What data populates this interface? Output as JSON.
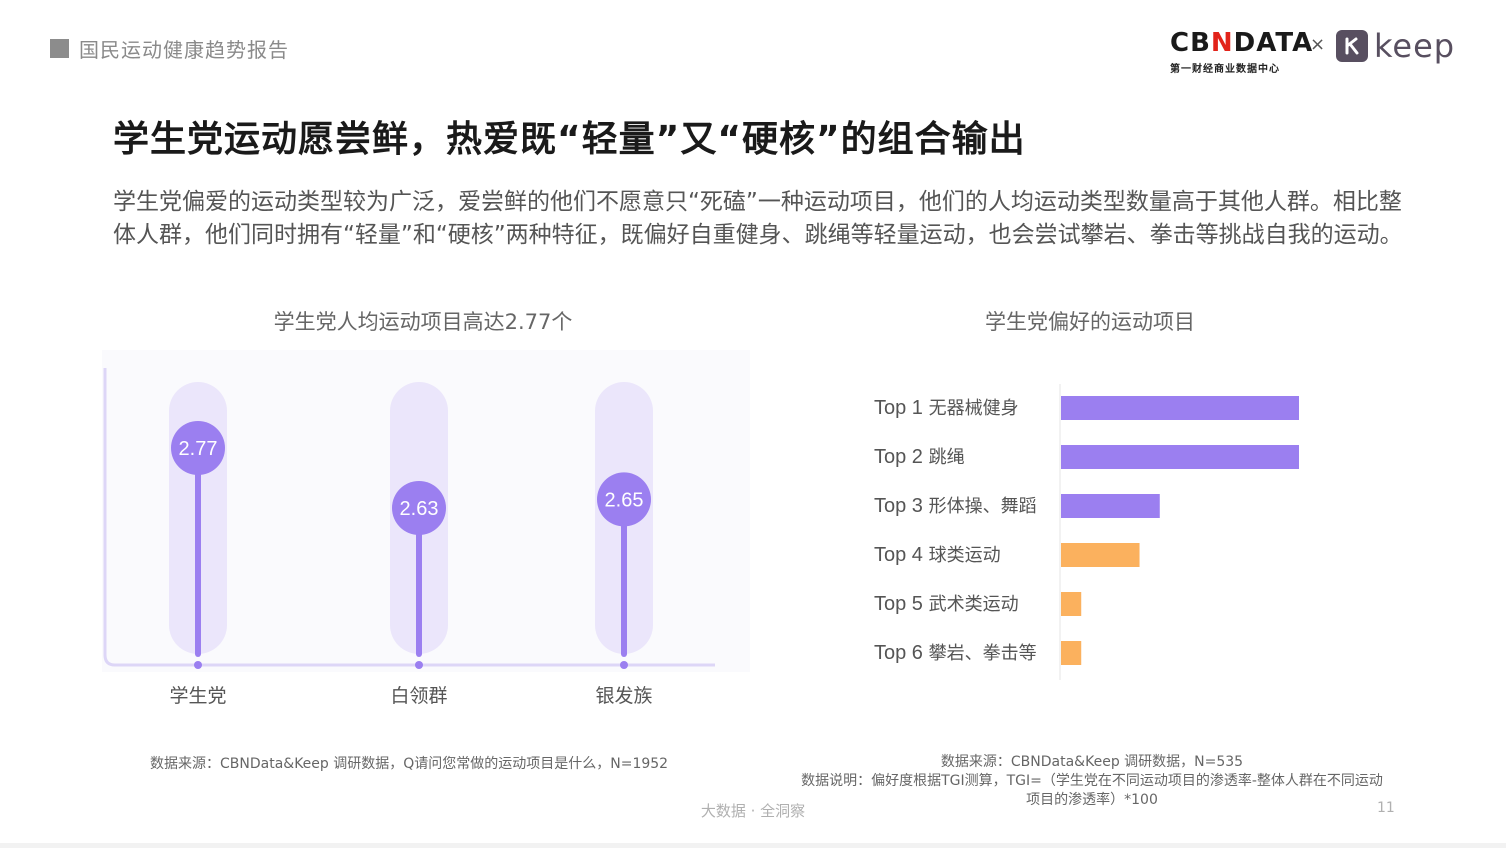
{
  "header": {
    "report_name": "国民运动健康趋势报告",
    "logo_cbn_main": "CBNDATA",
    "logo_cbn_sub": "第一财经商业数据中心",
    "logo_x": "×",
    "logo_keep": "keep"
  },
  "main": {
    "title": "学生党运动愿尝鲜，热爱既“轻量”又“硬核”的组合输出",
    "description": "学生党偏爱的运动类型较为广泛，爱尝鲜的他们不愿意只“死磕”一种运动项目，他们的人均运动类型数量高于其他人群。相比整体人群，他们同时拥有“轻量”和“硬核”两种特征，既偏好自重健身、跳绳等轻量运动，也会尝试攀岩、拳击等挑战自我的运动。"
  },
  "chart_data": [
    {
      "type": "lollipop",
      "title": "学生党人均运动项目高达2.77个",
      "categories": [
        "学生党",
        "白领群",
        "银发族"
      ],
      "values": [
        2.77,
        2.63,
        2.65
      ],
      "value_labels": [
        "2.77",
        "2.63",
        "2.65"
      ],
      "color": "#9b7ff0",
      "track_color": "#ebe6fb",
      "source": "数据来源：CBNData&Keep 调研数据，Q请问您常做的运动项目是什么，N=1952"
    },
    {
      "type": "bar",
      "orientation": "horizontal",
      "title": "学生党偏好的运动项目",
      "categories": [
        {
          "rank": "Top 1",
          "name": "无器械健身"
        },
        {
          "rank": "Top 2",
          "name": "跳绳"
        },
        {
          "rank": "Top 3",
          "name": "形体操、舞蹈"
        },
        {
          "rank": "Top 4",
          "name": "球类运动"
        },
        {
          "rank": "Top 5",
          "name": "武术类运动"
        },
        {
          "rank": "Top 6",
          "name": "攀岩、拳击等"
        }
      ],
      "values": [
        100,
        100,
        41.5,
        33,
        8.5,
        8.5
      ],
      "colors": [
        "#9b7ff0",
        "#9b7ff0",
        "#9b7ff0",
        "#fbb15e",
        "#fbb15e",
        "#fbb15e"
      ],
      "source_line1": "数据来源：CBNData&Keep 调研数据，N=535",
      "source_line2": "数据说明：偏好度根据TGI测算，TGI=（学生党在不同运动项目的渗透率-整体人群在不同运动",
      "source_line3": "项目的渗透率）*100"
    }
  ],
  "footer": {
    "text": "大数据 · 全洞察",
    "page": "11"
  }
}
